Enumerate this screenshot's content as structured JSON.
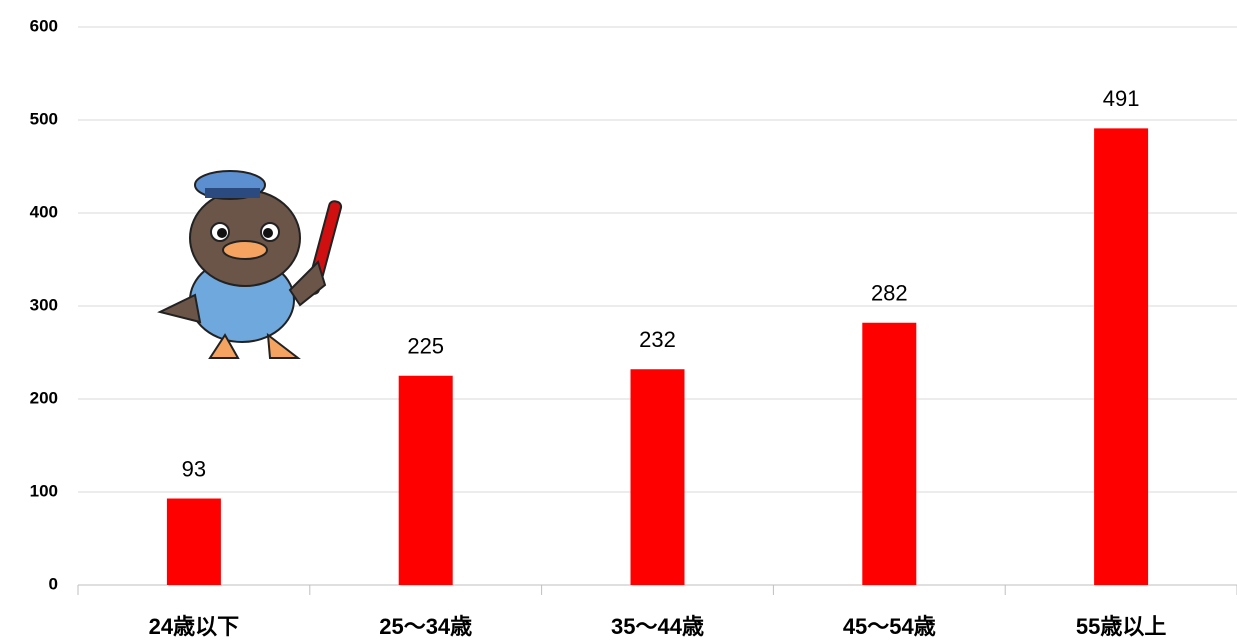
{
  "chart_data": {
    "type": "bar",
    "categories": [
      "24歳以下",
      "25～34歳",
      "35～44歳",
      "45～54歳",
      "55歳以上"
    ],
    "values": [
      93,
      225,
      232,
      282,
      491
    ],
    "color": "#ff0000",
    "ylim": [
      0,
      600
    ],
    "yticks": [
      0,
      100,
      200,
      300,
      400,
      500,
      600
    ],
    "grid": true
  }
}
